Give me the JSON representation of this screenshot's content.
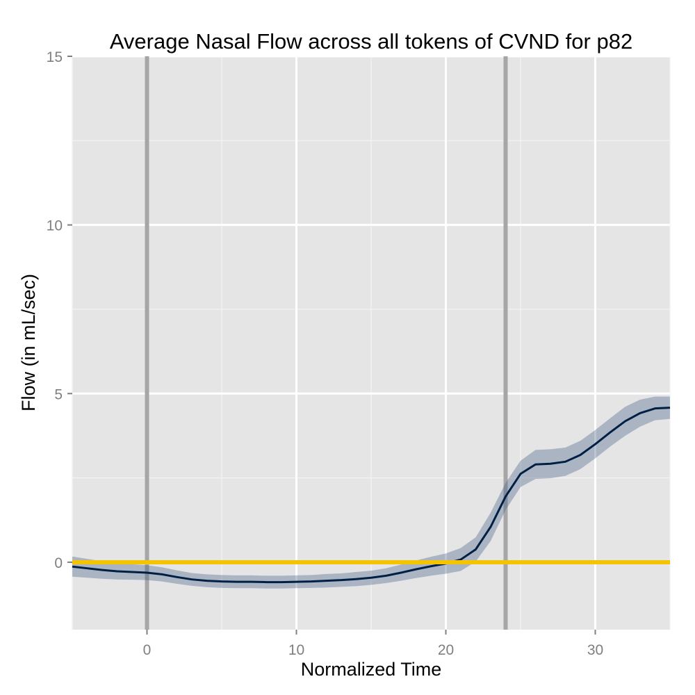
{
  "chart_data": {
    "type": "line",
    "title": "Average Nasal Flow across all tokens of CVND for p82",
    "xlabel": "Normalized Time",
    "ylabel": "Flow (in mL/sec)",
    "xlim": [
      -5,
      35
    ],
    "ylim": [
      -2,
      15
    ],
    "x_ticks": [
      "0",
      "10",
      "20",
      "30"
    ],
    "y_ticks": [
      "0",
      "5",
      "10",
      "15"
    ],
    "grid": true,
    "background": "#e5e5e5",
    "grid_color": "#ffffff",
    "vertical_lines": [
      0,
      24
    ],
    "vertical_line_color": "#a6a6a6",
    "reference_line": {
      "y": 0,
      "color": "#f5c400"
    },
    "series": [
      {
        "color": "#001f44",
        "band_color": "#3f5a80",
        "x": [
          -5,
          -4,
          -3,
          -2,
          -1,
          0,
          1,
          2,
          3,
          4,
          5,
          6,
          7,
          8,
          9,
          10,
          11,
          12,
          13,
          14,
          15,
          16,
          17,
          18,
          19,
          20,
          21,
          22,
          23,
          24,
          25,
          26,
          27,
          28,
          29,
          30,
          31,
          32,
          33,
          34,
          35
        ],
        "y": [
          -0.13,
          -0.18,
          -0.23,
          -0.27,
          -0.29,
          -0.31,
          -0.36,
          -0.44,
          -0.51,
          -0.55,
          -0.57,
          -0.58,
          -0.58,
          -0.59,
          -0.59,
          -0.58,
          -0.57,
          -0.55,
          -0.53,
          -0.5,
          -0.46,
          -0.4,
          -0.31,
          -0.21,
          -0.12,
          -0.04,
          0.08,
          0.38,
          1.05,
          1.95,
          2.62,
          2.9,
          2.92,
          2.98,
          3.18,
          3.5,
          3.85,
          4.18,
          4.42,
          4.56,
          4.58
        ],
        "lower": [
          -0.43,
          -0.46,
          -0.49,
          -0.51,
          -0.52,
          -0.53,
          -0.57,
          -0.64,
          -0.7,
          -0.74,
          -0.76,
          -0.77,
          -0.77,
          -0.78,
          -0.78,
          -0.77,
          -0.76,
          -0.75,
          -0.73,
          -0.71,
          -0.67,
          -0.62,
          -0.55,
          -0.47,
          -0.4,
          -0.34,
          -0.26,
          0.02,
          0.63,
          1.55,
          2.23,
          2.47,
          2.49,
          2.56,
          2.76,
          3.08,
          3.43,
          3.75,
          4.02,
          4.21,
          4.25
        ],
        "upper": [
          0.17,
          0.1,
          0.03,
          -0.03,
          -0.06,
          -0.09,
          -0.15,
          -0.24,
          -0.32,
          -0.36,
          -0.38,
          -0.39,
          -0.39,
          -0.4,
          -0.4,
          -0.39,
          -0.38,
          -0.35,
          -0.33,
          -0.29,
          -0.25,
          -0.18,
          -0.07,
          0.05,
          0.16,
          0.26,
          0.42,
          0.74,
          1.47,
          2.35,
          3.01,
          3.33,
          3.35,
          3.4,
          3.6,
          3.92,
          4.27,
          4.61,
          4.82,
          4.91,
          4.91
        ]
      }
    ]
  }
}
